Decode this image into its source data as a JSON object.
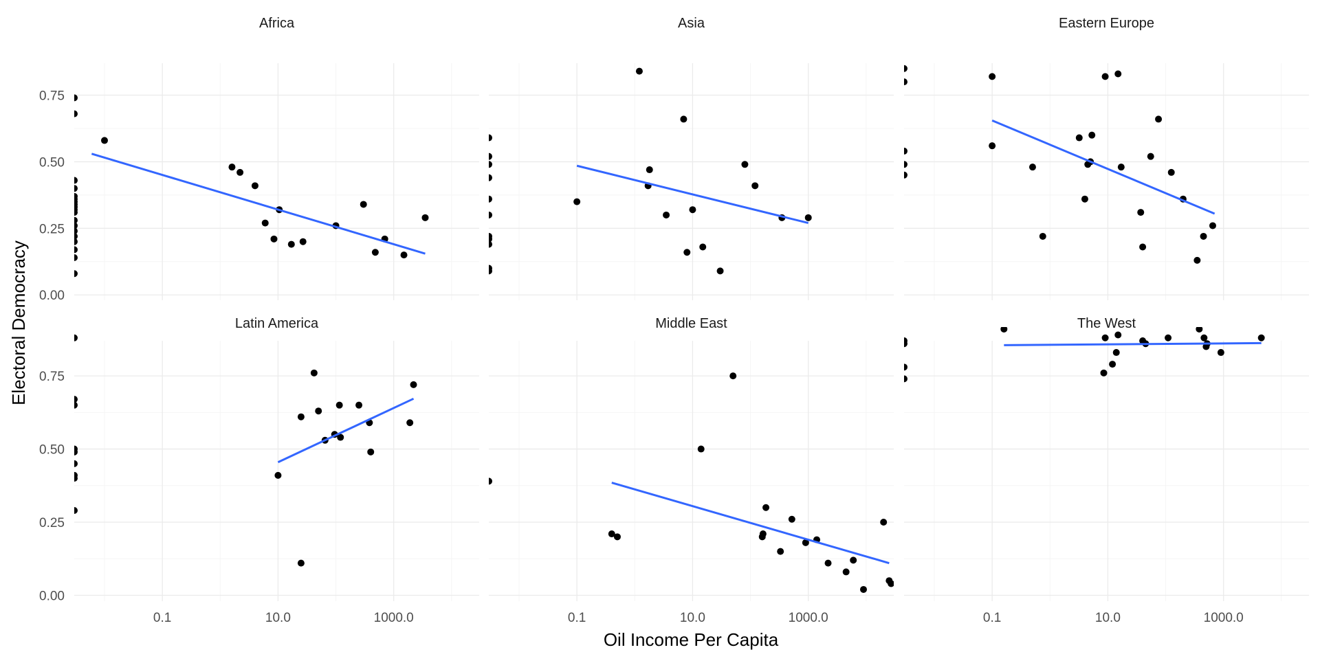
{
  "chart_data": {
    "type": "scatter",
    "xlabel": "Oil Income Per Capita",
    "ylabel": "Electoral Democracy",
    "x_scale": "log10",
    "xlim": [
      0.003,
      30000
    ],
    "ylim": [
      -0.02,
      0.87
    ],
    "x_ticks": [
      0.1,
      10,
      1000
    ],
    "x_tick_labels": [
      "0.1",
      "10.0",
      "1000.0"
    ],
    "y_ticks": [
      0,
      0.25,
      0.5,
      0.75
    ],
    "y_tick_labels": [
      "0.00",
      "0.25",
      "0.50",
      "0.75"
    ],
    "grid": true,
    "colors": {
      "points": "#000000",
      "fit_line": "#3366FF",
      "grid_major": "#ebebeb",
      "grid_minor": "#f5f5f5"
    },
    "facets": [
      {
        "name": "Africa",
        "zero_values": [
          0.74,
          0.68,
          0.43,
          0.4,
          0.37,
          0.36,
          0.35,
          0.34,
          0.33,
          0.32,
          0.31,
          0.28,
          0.26,
          0.24,
          0.22,
          0.2,
          0.17,
          0.14,
          0.08
        ],
        "points": [
          [
            0.01,
            0.58
          ],
          [
            1.6,
            0.48
          ],
          [
            2.2,
            0.46
          ],
          [
            4.0,
            0.41
          ],
          [
            6.0,
            0.27
          ],
          [
            8.5,
            0.21
          ],
          [
            10.5,
            0.32
          ],
          [
            17,
            0.19
          ],
          [
            27,
            0.2
          ],
          [
            100,
            0.26
          ],
          [
            300,
            0.34
          ],
          [
            480,
            0.16
          ],
          [
            700,
            0.21
          ],
          [
            1500,
            0.15
          ],
          [
            3500,
            0.29
          ]
        ],
        "fit": [
          [
            0.006,
            0.53
          ],
          [
            3500,
            0.155
          ]
        ]
      },
      {
        "name": "Asia",
        "zero_values": [
          0.59,
          0.52,
          0.49,
          0.44,
          0.36,
          0.3,
          0.22,
          0.21,
          0.19,
          0.1,
          0.09
        ],
        "points": [
          [
            0.1,
            0.35
          ],
          [
            1.2,
            0.84
          ],
          [
            1.8,
            0.47
          ],
          [
            1.7,
            0.41
          ],
          [
            3.5,
            0.3
          ],
          [
            7.0,
            0.66
          ],
          [
            8.0,
            0.16
          ],
          [
            10.0,
            0.32
          ],
          [
            15.0,
            0.18
          ],
          [
            30,
            0.09
          ],
          [
            80,
            0.49
          ],
          [
            120,
            0.41
          ],
          [
            350,
            0.29
          ],
          [
            1000,
            0.29
          ]
        ],
        "fit": [
          [
            0.1,
            0.485
          ],
          [
            1000,
            0.27
          ]
        ]
      },
      {
        "name": "Eastern Europe",
        "zero_values": [
          0.85,
          0.8,
          0.54,
          0.49,
          0.45
        ],
        "points": [
          [
            0.1,
            0.82
          ],
          [
            0.1,
            0.56
          ],
          [
            0.5,
            0.48
          ],
          [
            0.75,
            0.22
          ],
          [
            3.2,
            0.59
          ],
          [
            4.0,
            0.36
          ],
          [
            4.5,
            0.49
          ],
          [
            5.0,
            0.5
          ],
          [
            5.3,
            0.6
          ],
          [
            9.0,
            0.82
          ],
          [
            15,
            0.83
          ],
          [
            17,
            0.48
          ],
          [
            37,
            0.31
          ],
          [
            40,
            0.18
          ],
          [
            55,
            0.52
          ],
          [
            75,
            0.66
          ],
          [
            125,
            0.46
          ],
          [
            200,
            0.36
          ],
          [
            350,
            0.13
          ],
          [
            450,
            0.22
          ],
          [
            650,
            0.26
          ]
        ],
        "fit": [
          [
            0.1,
            0.655
          ],
          [
            700,
            0.305
          ]
        ]
      },
      {
        "name": "Latin America",
        "zero_values": [
          0.88,
          0.67,
          0.65,
          0.5,
          0.49,
          0.45,
          0.41,
          0.4,
          0.29
        ],
        "points": [
          [
            10,
            0.41
          ],
          [
            25,
            0.61
          ],
          [
            25,
            0.11
          ],
          [
            42,
            0.76
          ],
          [
            50,
            0.63
          ],
          [
            65,
            0.53
          ],
          [
            95,
            0.55
          ],
          [
            115,
            0.65
          ],
          [
            120,
            0.54
          ],
          [
            250,
            0.65
          ],
          [
            380,
            0.59
          ],
          [
            400,
            0.49
          ],
          [
            1900,
            0.59
          ],
          [
            2200,
            0.72
          ]
        ],
        "fit": [
          [
            10,
            0.455
          ],
          [
            2200,
            0.672
          ]
        ]
      },
      {
        "name": "Middle East",
        "zero_values": [
          0.39
        ],
        "points": [
          [
            0.4,
            0.21
          ],
          [
            0.5,
            0.2
          ],
          [
            14,
            0.5
          ],
          [
            50,
            0.75
          ],
          [
            160,
            0.2
          ],
          [
            165,
            0.21
          ],
          [
            185,
            0.3
          ],
          [
            330,
            0.15
          ],
          [
            520,
            0.26
          ],
          [
            900,
            0.18
          ],
          [
            1400,
            0.19
          ],
          [
            2200,
            0.11
          ],
          [
            4500,
            0.08
          ],
          [
            6000,
            0.12
          ],
          [
            9000,
            0.02
          ],
          [
            20000,
            0.25
          ],
          [
            25000,
            0.05
          ],
          [
            27000,
            0.04
          ]
        ],
        "fit": [
          [
            0.4,
            0.385
          ],
          [
            25000,
            0.11
          ]
        ]
      },
      {
        "name": "The West",
        "zero_values": [
          0.87,
          0.86,
          0.78,
          0.74
        ],
        "points": [
          [
            0.16,
            0.91
          ],
          [
            8.5,
            0.76
          ],
          [
            9.0,
            0.88
          ],
          [
            12,
            0.79
          ],
          [
            14,
            0.83
          ],
          [
            15,
            0.89
          ],
          [
            40,
            0.87
          ],
          [
            45,
            0.86
          ],
          [
            110,
            0.88
          ],
          [
            380,
            0.91
          ],
          [
            460,
            0.88
          ],
          [
            500,
            0.85
          ],
          [
            520,
            0.86
          ],
          [
            900,
            0.83
          ],
          [
            4500,
            0.88
          ]
        ],
        "fit": [
          [
            0.16,
            0.855
          ],
          [
            4500,
            0.862
          ]
        ]
      }
    ]
  }
}
